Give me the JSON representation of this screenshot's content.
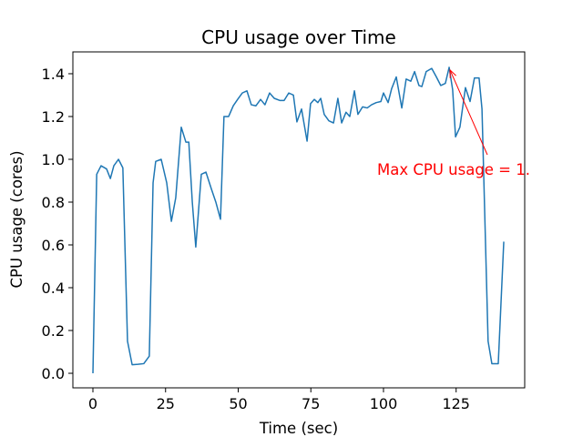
{
  "chart_data": {
    "type": "line",
    "title": "CPU usage over Time",
    "x_label": "Time (sec)",
    "y_label": "CPU usage (cores)",
    "xlim": [
      -6.9,
      148.6
    ],
    "ylim": [
      -0.068,
      1.502
    ],
    "xticks": [
      0,
      25,
      50,
      75,
      100,
      125
    ],
    "yticks": [
      {
        "value": 0,
        "label": "0.0"
      },
      0.2,
      0.4,
      0.6,
      0.8,
      {
        "value": 1,
        "label": "1.0"
      },
      1.2,
      1.4
    ],
    "series": [
      {
        "name": "CPU usage",
        "color": "#1f77b4",
        "x": [
          0,
          1.3,
          2.8,
          4.7,
          6,
          7.2,
          8.8,
          10.3,
          11.9,
          13.5,
          15.5,
          17.5,
          19.4,
          20.7,
          21.6,
          23.5,
          25.4,
          27,
          28.5,
          30.4,
          32,
          33,
          34.2,
          35.4,
          37.3,
          38.9,
          40.8,
          42.3,
          43.9,
          45.1,
          46.7,
          48.3,
          49.8,
          51.4,
          53,
          54.5,
          56.1,
          57.7,
          59.2,
          60.8,
          62.4,
          64.3,
          65.8,
          67.4,
          69,
          70.2,
          71.8,
          73.7,
          74.9,
          76.2,
          77.4,
          78.4,
          79.6,
          81.2,
          82.8,
          84.3,
          85.6,
          87.1,
          88.4,
          90,
          91.2,
          92.8,
          94.4,
          95.9,
          97.5,
          99.1,
          100,
          101.6,
          102.8,
          104.4,
          106.3,
          107.8,
          109.4,
          110.7,
          112.2,
          113.2,
          114.7,
          116.6,
          118.2,
          119.7,
          121.3,
          122.6,
          123.8,
          124.8,
          126.3,
          128.2,
          129.8,
          131.3,
          132.9,
          133.9,
          136,
          137.3,
          139.5,
          141.4
        ],
        "values": [
          0,
          0.93,
          0.97,
          0.955,
          0.91,
          0.97,
          1.0,
          0.96,
          0.15,
          0.04,
          0.042,
          0.045,
          0.08,
          0.89,
          0.99,
          1.0,
          0.89,
          0.71,
          0.82,
          1.15,
          1.08,
          1.08,
          0.8,
          0.59,
          0.93,
          0.94,
          0.86,
          0.8,
          0.72,
          1.2,
          1.2,
          1.25,
          1.28,
          1.31,
          1.32,
          1.255,
          1.25,
          1.28,
          1.255,
          1.31,
          1.285,
          1.275,
          1.275,
          1.31,
          1.3,
          1.175,
          1.235,
          1.085,
          1.26,
          1.28,
          1.265,
          1.285,
          1.21,
          1.18,
          1.17,
          1.285,
          1.17,
          1.22,
          1.2,
          1.32,
          1.21,
          1.245,
          1.24,
          1.255,
          1.265,
          1.27,
          1.31,
          1.265,
          1.33,
          1.385,
          1.24,
          1.375,
          1.365,
          1.41,
          1.345,
          1.34,
          1.41,
          1.425,
          1.385,
          1.345,
          1.355,
          1.43,
          1.325,
          1.105,
          1.15,
          1.335,
          1.27,
          1.38,
          1.38,
          1.235,
          0.15,
          0.045,
          0.045,
          0.615
        ]
      }
    ],
    "annotation": {
      "text": "Max CPU usage = 1.",
      "color": "red"
    }
  }
}
